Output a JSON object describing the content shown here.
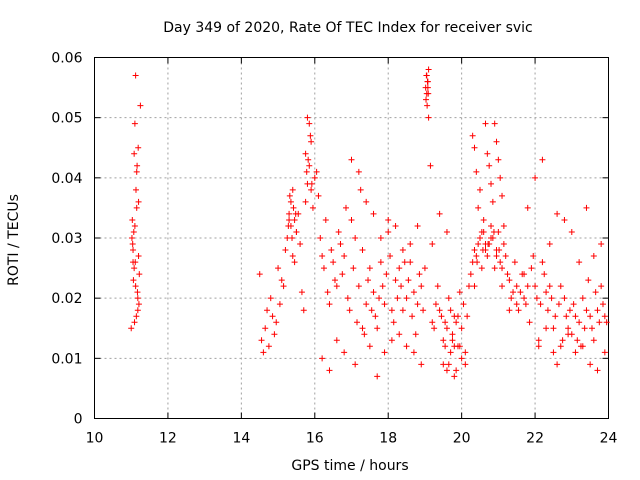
{
  "chart_data": {
    "type": "scatter",
    "title": "Day 349 of 2020, Rate Of TEC Index for receiver svic",
    "xlabel": "GPS time / hours",
    "ylabel": "ROTI / TECUs",
    "xlim": [
      10,
      24
    ],
    "ylim": [
      0,
      0.06
    ],
    "xticks": [
      10,
      12,
      14,
      16,
      18,
      20,
      22,
      24
    ],
    "yticks": [
      0,
      0.01,
      0.02,
      0.03,
      0.04,
      0.05,
      0.06
    ],
    "xtick_labels": [
      "10",
      "12",
      "14",
      "16",
      "18",
      "20",
      "22",
      "24"
    ],
    "ytick_labels": [
      "0",
      "0.01",
      "0.02",
      "0.03",
      "0.04",
      "0.05",
      "0.06"
    ],
    "grid": true,
    "marker": "+",
    "color": "#ff0000",
    "series": [
      {
        "name": "ROTI",
        "x": [
          11.02,
          11.05,
          11.08,
          11.1,
          11.12,
          11.15,
          11.18,
          11.2,
          11.22,
          11.04,
          11.07,
          11.11,
          11.14,
          11.17,
          11.21,
          11.03,
          11.06,
          11.09,
          11.13,
          11.16,
          11.19,
          11.0,
          11.1,
          11.2,
          11.15,
          11.25,
          11.12,
          11.08,
          11.18,
          11.05,
          14.5,
          14.55,
          14.6,
          14.65,
          14.7,
          14.75,
          14.8,
          14.85,
          14.9,
          14.95,
          15.0,
          15.05,
          15.1,
          15.15,
          15.2,
          15.25,
          15.3,
          15.35,
          15.4,
          15.45,
          15.5,
          15.55,
          15.6,
          15.65,
          15.7,
          15.75,
          15.8,
          15.85,
          15.9,
          15.95,
          16.0,
          16.05,
          16.1,
          16.15,
          16.2,
          16.25,
          16.3,
          16.35,
          16.4,
          16.45,
          16.5,
          16.55,
          16.6,
          16.65,
          16.7,
          16.75,
          16.8,
          16.85,
          16.9,
          16.95,
          17.0,
          17.05,
          17.1,
          17.15,
          17.2,
          17.25,
          17.3,
          17.35,
          17.4,
          17.45,
          17.5,
          17.55,
          17.6,
          17.65,
          17.7,
          17.75,
          17.8,
          17.85,
          17.9,
          17.95,
          18.0,
          18.05,
          18.1,
          18.15,
          18.2,
          18.25,
          18.3,
          18.35,
          18.4,
          18.45,
          18.5,
          18.55,
          18.6,
          18.65,
          18.7,
          18.75,
          18.8,
          18.85,
          18.9,
          18.95,
          19.0,
          19.02,
          19.05,
          19.08,
          19.1,
          19.15,
          19.2,
          19.25,
          19.3,
          19.35,
          19.4,
          19.45,
          19.5,
          19.55,
          19.6,
          19.65,
          19.7,
          19.75,
          19.8,
          19.85,
          19.9,
          19.95,
          20.0,
          20.05,
          20.1,
          20.15,
          20.2,
          20.25,
          20.3,
          20.35,
          20.4,
          20.45,
          20.5,
          20.55,
          20.6,
          20.65,
          20.7,
          20.75,
          20.8,
          20.85,
          20.9,
          20.95,
          21.0,
          21.05,
          21.1,
          21.15,
          21.2,
          21.25,
          21.3,
          21.35,
          21.4,
          21.45,
          21.5,
          21.55,
          21.6,
          21.65,
          21.7,
          21.75,
          21.8,
          21.85,
          21.9,
          21.95,
          22.0,
          22.05,
          22.1,
          22.15,
          22.2,
          22.25,
          22.3,
          22.35,
          22.4,
          22.45,
          22.5,
          22.55,
          22.6,
          22.65,
          22.7,
          22.75,
          22.8,
          22.85,
          22.9,
          22.95,
          23.0,
          23.05,
          23.1,
          23.15,
          23.2,
          23.25,
          23.3,
          23.35,
          23.4,
          23.45,
          23.5,
          23.55,
          23.6,
          23.65,
          23.7,
          23.75,
          23.8,
          23.85,
          23.9,
          23.95,
          15.3,
          15.35,
          15.4,
          15.45,
          15.5,
          15.32,
          15.42,
          15.48,
          15.38,
          15.28,
          15.8,
          15.85,
          15.9,
          15.75,
          15.82,
          15.88,
          15.78,
          15.92,
          19.05,
          19.07,
          19.1,
          19.03,
          19.08,
          19.06,
          19.04,
          19.09,
          20.3,
          20.35,
          20.4,
          20.45,
          20.5,
          20.55,
          20.6,
          20.65,
          20.7,
          20.75,
          20.8,
          20.85,
          20.9,
          20.95,
          21.0,
          21.05,
          21.1,
          21.15,
          20.35,
          20.5,
          20.65,
          20.8,
          20.95,
          21.1,
          20.42,
          20.58,
          20.72,
          20.88,
          21.02,
          17.0,
          17.2,
          17.4,
          17.6,
          17.8,
          18.0,
          18.2,
          18.4,
          18.6,
          18.8,
          19.2,
          19.4,
          19.6,
          19.8,
          16.2,
          16.4,
          16.6,
          16.8,
          17.1,
          17.3,
          17.5,
          17.7,
          17.9,
          18.1,
          18.3,
          18.5,
          18.7,
          18.9,
          19.5,
          19.6,
          19.7,
          19.8,
          19.9,
          20.0,
          20.1,
          19.55,
          19.65,
          19.75,
          19.85,
          19.95,
          21.8,
          22.0,
          22.2,
          22.4,
          22.6,
          22.8,
          23.0,
          23.2,
          23.4,
          23.6,
          23.8,
          21.3,
          21.5,
          21.7,
          22.1,
          22.3,
          22.5,
          22.7,
          22.9,
          23.1,
          23.3,
          23.5,
          23.7,
          23.9
        ],
        "y": [
          0.03,
          0.028,
          0.025,
          0.032,
          0.022,
          0.035,
          0.02,
          0.027,
          0.024,
          0.029,
          0.031,
          0.026,
          0.017,
          0.021,
          0.019,
          0.033,
          0.023,
          0.016,
          0.038,
          0.042,
          0.045,
          0.015,
          0.049,
          0.036,
          0.041,
          0.052,
          0.057,
          0.044,
          0.018,
          0.026,
          0.024,
          0.013,
          0.011,
          0.015,
          0.018,
          0.012,
          0.02,
          0.017,
          0.014,
          0.016,
          0.025,
          0.019,
          0.023,
          0.022,
          0.028,
          0.03,
          0.033,
          0.032,
          0.027,
          0.026,
          0.031,
          0.034,
          0.029,
          0.021,
          0.018,
          0.036,
          0.039,
          0.042,
          0.038,
          0.035,
          0.04,
          0.041,
          0.037,
          0.03,
          0.027,
          0.025,
          0.033,
          0.021,
          0.019,
          0.028,
          0.026,
          0.023,
          0.022,
          0.031,
          0.029,
          0.024,
          0.027,
          0.035,
          0.02,
          0.018,
          0.033,
          0.025,
          0.03,
          0.016,
          0.022,
          0.038,
          0.028,
          0.014,
          0.019,
          0.023,
          0.025,
          0.018,
          0.021,
          0.017,
          0.015,
          0.02,
          0.026,
          0.022,
          0.019,
          0.024,
          0.031,
          0.027,
          0.018,
          0.016,
          0.023,
          0.02,
          0.025,
          0.022,
          0.018,
          0.026,
          0.02,
          0.023,
          0.029,
          0.017,
          0.021,
          0.014,
          0.019,
          0.024,
          0.022,
          0.018,
          0.025,
          0.055,
          0.057,
          0.056,
          0.05,
          0.042,
          0.016,
          0.015,
          0.019,
          0.022,
          0.018,
          0.017,
          0.013,
          0.016,
          0.015,
          0.02,
          0.018,
          0.014,
          0.012,
          0.016,
          0.017,
          0.021,
          0.015,
          0.019,
          0.011,
          0.017,
          0.022,
          0.024,
          0.026,
          0.022,
          0.027,
          0.029,
          0.03,
          0.025,
          0.031,
          0.028,
          0.027,
          0.029,
          0.032,
          0.03,
          0.025,
          0.028,
          0.031,
          0.026,
          0.022,
          0.029,
          0.027,
          0.024,
          0.023,
          0.02,
          0.021,
          0.026,
          0.019,
          0.018,
          0.021,
          0.024,
          0.02,
          0.019,
          0.022,
          0.016,
          0.025,
          0.027,
          0.022,
          0.02,
          0.012,
          0.019,
          0.026,
          0.024,
          0.021,
          0.018,
          0.022,
          0.02,
          0.015,
          0.017,
          0.009,
          0.019,
          0.022,
          0.013,
          0.02,
          0.017,
          0.015,
          0.018,
          0.014,
          0.019,
          0.017,
          0.013,
          0.016,
          0.012,
          0.02,
          0.015,
          0.018,
          0.023,
          0.017,
          0.015,
          0.013,
          0.021,
          0.018,
          0.016,
          0.022,
          0.019,
          0.017,
          0.016,
          0.034,
          0.036,
          0.038,
          0.033,
          0.031,
          0.037,
          0.035,
          0.034,
          0.03,
          0.032,
          0.05,
          0.049,
          0.046,
          0.044,
          0.043,
          0.047,
          0.041,
          0.039,
          0.054,
          0.056,
          0.058,
          0.053,
          0.055,
          0.052,
          0.057,
          0.054,
          0.047,
          0.045,
          0.041,
          0.035,
          0.038,
          0.031,
          0.033,
          0.049,
          0.044,
          0.042,
          0.039,
          0.036,
          0.049,
          0.046,
          0.043,
          0.04,
          0.037,
          0.032,
          0.028,
          0.03,
          0.029,
          0.03,
          0.027,
          0.025,
          0.026,
          0.028,
          0.029,
          0.031,
          0.028,
          0.043,
          0.041,
          0.036,
          0.034,
          0.03,
          0.033,
          0.032,
          0.028,
          0.026,
          0.032,
          0.029,
          0.034,
          0.031,
          0.017,
          0.01,
          0.008,
          0.013,
          0.011,
          0.009,
          0.015,
          0.012,
          0.007,
          0.011,
          0.013,
          0.014,
          0.012,
          0.011,
          0.009,
          0.009,
          0.008,
          0.011,
          0.007,
          0.012,
          0.01,
          0.009,
          0.012,
          0.009,
          0.013,
          0.008,
          0.012,
          0.035,
          0.04,
          0.043,
          0.029,
          0.034,
          0.033,
          0.031,
          0.026,
          0.035,
          0.027,
          0.029,
          0.018,
          0.022,
          0.024,
          0.013,
          0.015,
          0.011,
          0.012,
          0.014,
          0.011,
          0.012,
          0.009,
          0.008,
          0.011
        ]
      }
    ]
  }
}
